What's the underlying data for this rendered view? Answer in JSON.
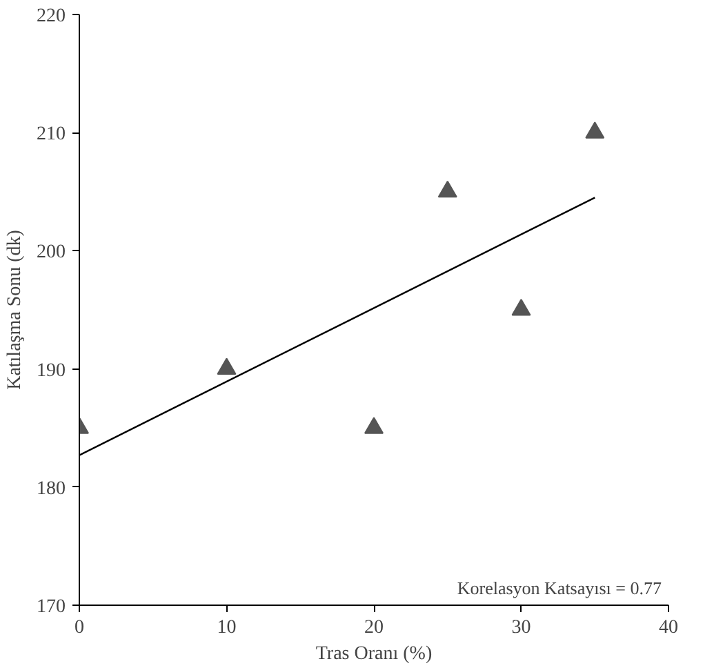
{
  "chart_data": {
    "type": "scatter",
    "xlabel": "Tras Oranı (%)",
    "ylabel": "Katılaşma Sonu (dk)",
    "annotations": [
      "Korelasyon Katsayısı = 0.77"
    ],
    "series": [
      {
        "color": "#555555",
        "x": [
          0,
          10,
          20,
          25,
          30,
          35
        ],
        "values": [
          185,
          190,
          185,
          205,
          195,
          210
        ],
        "marker": "triangle"
      },
      {
        "type": "line",
        "color": "#000000",
        "x": [
          0,
          35
        ],
        "values": [
          182.7,
          204.5
        ],
        "line_style": "solid"
      }
    ],
    "xlim": [
      0,
      40
    ],
    "xticks": [
      0,
      10,
      20,
      30,
      40
    ],
    "ylim": [
      170,
      220
    ],
    "yticks": [
      170,
      180,
      190,
      200,
      210,
      220
    ],
    "grid": false
  }
}
